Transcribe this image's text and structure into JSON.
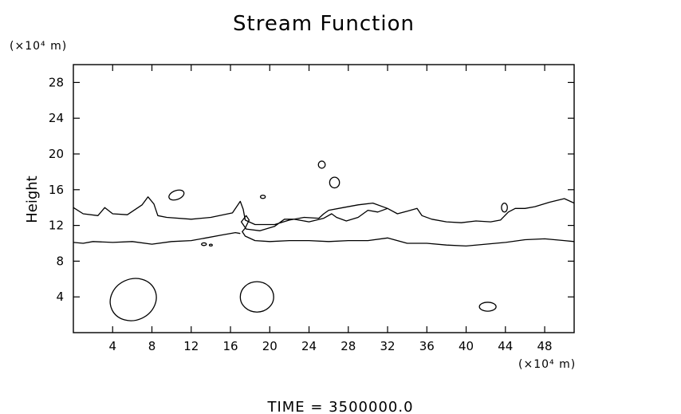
{
  "chart_data": {
    "type": "contour",
    "title": "Stream Function",
    "xlabel": "",
    "xunit": "(×10⁴ m)",
    "ylabel": "Height",
    "yunit": "(×10⁴ m)",
    "xlim": [
      0,
      51
    ],
    "ylim": [
      0,
      30
    ],
    "xticks": [
      4,
      8,
      12,
      16,
      20,
      24,
      28,
      32,
      36,
      40,
      44,
      48
    ],
    "yticks": [
      4,
      8,
      12,
      16,
      20,
      24,
      28
    ],
    "grid": false,
    "footer": "TIME  =  3500000.0",
    "contours": [
      {
        "id": "upper-wavy-contour",
        "closed": false,
        "points": [
          [
            0,
            14
          ],
          [
            1,
            13.3
          ],
          [
            2.5,
            13.1
          ],
          [
            3.2,
            14
          ],
          [
            4,
            13.3
          ],
          [
            5.5,
            13.2
          ],
          [
            7,
            14.3
          ],
          [
            7.6,
            15.2
          ],
          [
            8.2,
            14.4
          ],
          [
            8.6,
            13.1
          ],
          [
            9.5,
            12.9
          ],
          [
            12,
            12.7
          ],
          [
            14,
            12.9
          ],
          [
            16.2,
            13.4
          ],
          [
            17,
            14.7
          ],
          [
            17.3,
            13.8
          ],
          [
            17.5,
            12.6
          ],
          [
            18.5,
            12.1
          ],
          [
            20.5,
            12.1
          ],
          [
            22,
            12.6
          ],
          [
            23.5,
            12.9
          ],
          [
            25,
            12.8
          ],
          [
            25.5,
            13.3
          ],
          [
            26,
            13.7
          ],
          [
            27.5,
            14
          ],
          [
            29,
            14.3
          ],
          [
            30.5,
            14.5
          ],
          [
            32,
            13.9
          ],
          [
            31,
            13.5
          ],
          [
            30,
            13.7
          ],
          [
            29,
            12.9
          ],
          [
            27.8,
            12.5
          ],
          [
            26.8,
            12.9
          ],
          [
            26.3,
            13.3
          ],
          [
            25.5,
            12.8
          ],
          [
            24,
            12.4
          ],
          [
            22.5,
            12.7
          ],
          [
            21.5,
            12.7
          ],
          [
            20.5,
            11.9
          ],
          [
            19,
            11.4
          ],
          [
            17.6,
            11.6
          ],
          [
            17.1,
            12.4
          ],
          [
            17.6,
            13.1
          ],
          [
            17.9,
            12.6
          ],
          [
            17.5,
            11.7
          ],
          [
            17.2,
            11.3
          ],
          [
            17.5,
            10.8
          ],
          [
            18.5,
            10.3
          ],
          [
            20,
            10.2
          ],
          [
            22,
            10.3
          ],
          [
            24,
            10.3
          ],
          [
            26,
            10.2
          ],
          [
            28,
            10.3
          ],
          [
            30,
            10.3
          ],
          [
            32,
            10.6
          ],
          [
            34,
            10
          ],
          [
            36,
            10
          ],
          [
            38,
            9.8
          ],
          [
            40,
            9.7
          ],
          [
            42,
            9.9
          ],
          [
            44,
            10.1
          ],
          [
            46,
            10.4
          ],
          [
            48,
            10.5
          ],
          [
            50,
            10.3
          ],
          [
            51,
            10.2
          ]
        ]
      },
      {
        "id": "lower-flat-contour",
        "closed": false,
        "points": [
          [
            0,
            10.1
          ],
          [
            1,
            10
          ],
          [
            2,
            10.2
          ],
          [
            4,
            10.1
          ],
          [
            6,
            10.2
          ],
          [
            8,
            9.9
          ],
          [
            10,
            10.2
          ],
          [
            12,
            10.3
          ],
          [
            13.5,
            10.6
          ],
          [
            15,
            10.9
          ],
          [
            16.5,
            11.2
          ],
          [
            17,
            11.1
          ]
        ]
      },
      {
        "id": "right-upper-contour",
        "closed": false,
        "points": [
          [
            32,
            13.9
          ],
          [
            33,
            13.3
          ],
          [
            34,
            13.6
          ],
          [
            35,
            13.9
          ],
          [
            35.5,
            13.1
          ],
          [
            36.5,
            12.7
          ],
          [
            38,
            12.4
          ],
          [
            39.5,
            12.3
          ],
          [
            41,
            12.5
          ],
          [
            42.5,
            12.4
          ],
          [
            43.5,
            12.6
          ],
          [
            44.3,
            13.5
          ],
          [
            45,
            13.9
          ],
          [
            46,
            13.9
          ],
          [
            47,
            14.1
          ],
          [
            48.5,
            14.6
          ],
          [
            50,
            15
          ],
          [
            51,
            14.5
          ]
        ]
      },
      {
        "id": "cell-bottom-left",
        "closed": true,
        "center": [
          6.1,
          3.7
        ],
        "rx": 2.4,
        "ry": 2.3,
        "angle": -25
      },
      {
        "id": "cell-bottom-middle",
        "closed": true,
        "center": [
          18.7,
          4.0
        ],
        "rx": 1.7,
        "ry": 1.7,
        "angle": 0
      },
      {
        "id": "cell-bottom-right",
        "closed": true,
        "center": [
          42.2,
          2.9
        ],
        "rx": 0.85,
        "ry": 0.5,
        "angle": 0
      },
      {
        "id": "cell-top-19",
        "closed": true,
        "center": [
          25.3,
          18.8
        ],
        "rx": 0.35,
        "ry": 0.4,
        "angle": 0
      },
      {
        "id": "cell-top-17",
        "closed": true,
        "center": [
          26.6,
          16.8
        ],
        "rx": 0.5,
        "ry": 0.6,
        "angle": 0
      },
      {
        "id": "cell-mid-15-left",
        "closed": true,
        "center": [
          10.5,
          15.4
        ],
        "rx": 0.8,
        "ry": 0.5,
        "angle": -20
      },
      {
        "id": "cell-mid-15-small",
        "closed": true,
        "center": [
          19.3,
          15.2
        ],
        "rx": 0.25,
        "ry": 0.18,
        "angle": 0
      },
      {
        "id": "cell-right-14",
        "closed": true,
        "center": [
          43.9,
          14.0
        ],
        "rx": 0.3,
        "ry": 0.5,
        "angle": 0
      },
      {
        "id": "cell-dot-a",
        "closed": true,
        "center": [
          13.3,
          9.9
        ],
        "rx": 0.25,
        "ry": 0.15,
        "angle": 0
      },
      {
        "id": "cell-dot-b",
        "closed": true,
        "center": [
          14.0,
          9.8
        ],
        "rx": 0.15,
        "ry": 0.1,
        "angle": 0
      }
    ]
  }
}
